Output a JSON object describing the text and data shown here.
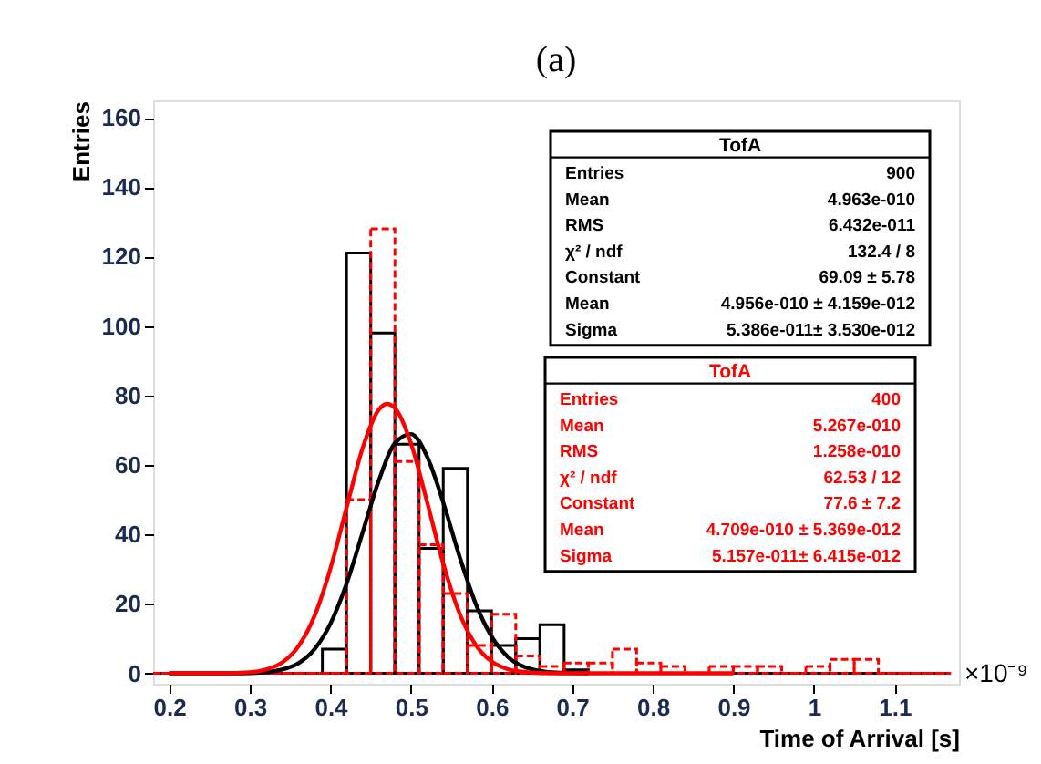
{
  "chart_data": {
    "type": "histogram",
    "title": "(a)",
    "xlabel": "Time of Arrival [s]",
    "ylabel": "Entries",
    "bins": [
      0.18,
      0.21,
      0.24,
      0.27,
      0.3,
      0.33,
      0.36,
      0.39,
      0.42,
      0.45,
      0.48,
      0.51,
      0.54,
      0.57,
      0.6,
      0.63,
      0.66,
      0.69,
      0.72,
      0.75,
      0.78,
      0.81,
      0.84,
      0.87,
      0.9,
      0.93,
      0.96,
      0.99,
      1.02,
      1.05,
      1.08,
      1.11,
      1.14,
      1.17
    ],
    "series": [
      {
        "color": "#000000",
        "line_style": "solid",
        "values": [
          0,
          0,
          0,
          0,
          0,
          0,
          0,
          7,
          121,
          98,
          66,
          36,
          59,
          18,
          8,
          10,
          14,
          1,
          0,
          0,
          0,
          0,
          0,
          0,
          0,
          0,
          0,
          0,
          0,
          0,
          0,
          0,
          0
        ]
      },
      {
        "color": "#ff0000",
        "line_style": "dashed",
        "values": [
          0,
          0,
          0,
          0,
          0,
          0,
          0,
          0,
          50,
          128,
          61,
          37,
          23,
          8,
          17,
          5,
          2,
          3,
          3,
          7,
          3,
          2,
          0,
          2,
          2,
          2,
          0,
          2,
          4,
          4,
          0,
          0,
          0
        ]
      },
      {
        "type": "line",
        "color": "#000000",
        "line_style": "solid",
        "x": [
          0.2,
          0.26,
          0.3,
          0.32,
          0.34,
          0.36,
          0.38,
          0.4,
          0.42,
          0.44,
          0.46,
          0.48,
          0.5,
          0.52,
          0.54,
          0.56,
          0.58,
          0.6,
          0.62,
          0.64,
          0.66,
          0.68,
          0.7,
          0.72
        ],
        "values": [
          0,
          0,
          0.1,
          0.3,
          1.1,
          2.9,
          6.9,
          14.3,
          25.8,
          40.6,
          55.5,
          66.3,
          68.9,
          62.4,
          49.2,
          33.8,
          20.2,
          10.6,
          4.8,
          1.9,
          0.7,
          0.2,
          0.1,
          0
        ]
      },
      {
        "type": "line",
        "color": "#ff0000",
        "line_style": "solid",
        "x": [
          0.2,
          0.26,
          0.3,
          0.32,
          0.34,
          0.36,
          0.38,
          0.4,
          0.42,
          0.44,
          0.46,
          0.47,
          0.48,
          0.5,
          0.52,
          0.54,
          0.56,
          0.58,
          0.6,
          0.62,
          0.64,
          0.66,
          0.7,
          0.9
        ],
        "values": [
          0,
          0,
          0.3,
          1.1,
          3.1,
          7.7,
          16.4,
          30.2,
          47.7,
          64.9,
          75.9,
          77.6,
          76.4,
          66.2,
          49.3,
          31.6,
          17.4,
          8.3,
          3.4,
          1.2,
          0.4,
          0.1,
          0,
          0
        ]
      }
    ],
    "xlim": [
      0.18,
      1.18
    ],
    "xticks": [
      0.2,
      0.3,
      0.4,
      0.5,
      0.6,
      0.7,
      0.8,
      0.9,
      1,
      1.1
    ],
    "ylim": [
      -3,
      165
    ],
    "yticks": [
      0,
      20,
      40,
      60,
      80,
      100,
      120,
      140,
      160
    ],
    "grid": false,
    "annotations": [
      "×10⁻⁹",
      "TofA",
      "Entries",
      "900",
      "Mean",
      "4.963e-010",
      "RMS",
      "6.432e-011",
      "χ² / ndf",
      "132.4 / 8",
      "Constant",
      "69.09 ± 5.78",
      "Mean",
      "4.956e-010 ± 4.159e-012",
      "Sigma",
      "5.386e-011± 3.530e-012",
      "TofA",
      "Entries",
      "400",
      "Mean",
      "5.267e-010",
      "RMS",
      "1.258e-010",
      "χ² / ndf",
      "62.53 / 12",
      "Constant",
      "77.6 ± 7.2",
      "Mean",
      "4.709e-010 ± 5.369e-012",
      "Sigma",
      "5.157e-011± 6.415e-012"
    ]
  }
}
